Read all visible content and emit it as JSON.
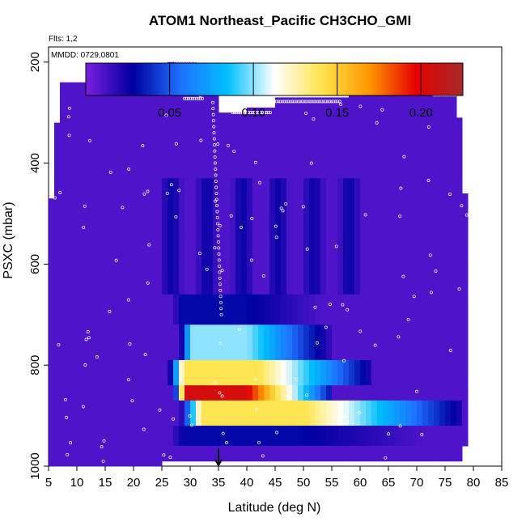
{
  "header": {
    "title": "ATOM1 Northeast_Pacific CH3CHO_GMI",
    "flights_note": "Flts: 1,2",
    "date_note": "MMDD: 0729,0801"
  },
  "chart_data": {
    "type": "heatmap",
    "title": "ATOM1 Northeast_Pacific CH3CHO_GMI",
    "xlabel": "Latitude (deg N)",
    "ylabel": "PSXC (mbar)",
    "xlim": [
      5,
      85
    ],
    "ylim": [
      1000,
      170
    ],
    "y_reversed": true,
    "x_ticks": [
      5,
      10,
      15,
      20,
      25,
      30,
      35,
      40,
      45,
      50,
      55,
      60,
      65,
      70,
      75,
      80,
      85
    ],
    "y_ticks": [
      1000,
      800,
      600,
      400,
      200
    ],
    "colorbar": {
      "range": [
        0.0,
        0.225
      ],
      "ticks": [
        0.05,
        0.1,
        0.15,
        0.2
      ],
      "tick_labels": [
        "0.05",
        "0.10",
        "0.15",
        "0.20"
      ],
      "colors": [
        "#7a1fe0",
        "#0000a0",
        "#1e6fff",
        "#00bfff",
        "#ffffff",
        "#ffe44d",
        "#ff9900",
        "#e60000",
        "#a52a2a"
      ]
    },
    "field_description_values": {
      "background_value": 0.01,
      "layers": [
        {
          "p_range": [
            660,
            720
          ],
          "lat_range": [
            26,
            57
          ],
          "peak": 0.03
        },
        {
          "p_range": [
            720,
            790
          ],
          "lat_range": [
            28,
            55
          ],
          "peak": 0.1
        },
        {
          "p_range": [
            790,
            840
          ],
          "lat_range": [
            26,
            62
          ],
          "peak": 0.14
        },
        {
          "p_range": [
            840,
            870
          ],
          "lat_range": [
            27,
            55
          ],
          "peak": 0.205
        },
        {
          "p_range": [
            870,
            920
          ],
          "lat_range": [
            28,
            78
          ],
          "peak": 0.14
        },
        {
          "p_range": [
            920,
            960
          ],
          "lat_range": [
            25,
            78
          ],
          "peak": 0.03
        }
      ]
    },
    "marker": {
      "type": "arrow",
      "x": 35,
      "label": ""
    }
  }
}
